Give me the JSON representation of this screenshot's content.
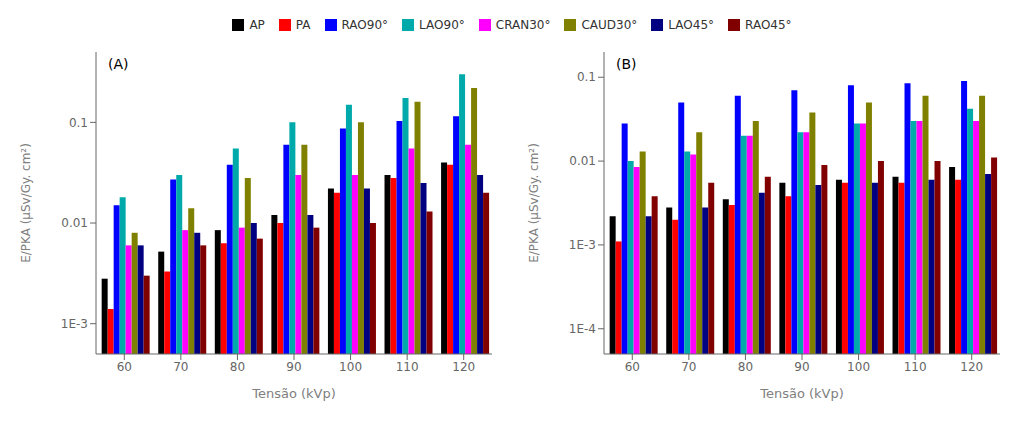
{
  "chart_data": [
    {
      "type": "bar",
      "title": "(A)",
      "xlabel": "Tensão (kVp)",
      "ylabel": "E/PKA (μSv/Gy. cm²)",
      "categories": [
        60,
        70,
        80,
        90,
        100,
        110,
        120
      ],
      "series": [
        {
          "name": "AP",
          "color": "#000000",
          "values": [
            0.0028,
            0.0052,
            0.0085,
            0.012,
            0.022,
            0.03,
            0.04
          ]
        },
        {
          "name": "PA",
          "color": "#ff0000",
          "values": [
            0.0014,
            0.0033,
            0.0063,
            0.01,
            0.02,
            0.028,
            0.038
          ]
        },
        {
          "name": "RAO90°",
          "color": "#0000ff",
          "values": [
            0.015,
            0.027,
            0.038,
            0.06,
            0.087,
            0.103,
            0.115
          ]
        },
        {
          "name": "LAO90°",
          "color": "#00aaaa",
          "values": [
            0.018,
            0.03,
            0.055,
            0.1,
            0.15,
            0.175,
            0.3
          ]
        },
        {
          "name": "CRAN30°",
          "color": "#ff00ff",
          "values": [
            0.006,
            0.0085,
            0.009,
            0.03,
            0.03,
            0.055,
            0.06
          ]
        },
        {
          "name": "CAUD30°",
          "color": "#808000",
          "values": [
            0.008,
            0.014,
            0.028,
            0.06,
            0.1,
            0.16,
            0.22
          ]
        },
        {
          "name": "LAO45°",
          "color": "#000080",
          "values": [
            0.006,
            0.008,
            0.01,
            0.012,
            0.022,
            0.025,
            0.03
          ]
        },
        {
          "name": "RAO45°",
          "color": "#800000",
          "values": [
            0.003,
            0.006,
            0.007,
            0.009,
            0.01,
            0.013,
            0.02
          ]
        }
      ],
      "log": "y",
      "ylim": [
        0.0005,
        0.5
      ],
      "yticks": [
        {
          "value": 0.001,
          "label": "1E-3"
        },
        0.01,
        0.1
      ],
      "grid": false,
      "legend": "top"
    },
    {
      "type": "bar",
      "title": "(B)",
      "xlabel": "Tensão (kVp)",
      "ylabel": "E/PKA (μSv/Gy. cm²)",
      "categories": [
        60,
        70,
        80,
        90,
        100,
        110,
        120
      ],
      "series": [
        {
          "name": "AP",
          "color": "#000000",
          "values": [
            0.0022,
            0.0028,
            0.0035,
            0.0055,
            0.006,
            0.0065,
            0.0085
          ]
        },
        {
          "name": "PA",
          "color": "#ff0000",
          "values": [
            0.0011,
            0.002,
            0.003,
            0.0038,
            0.0055,
            0.0055,
            0.006
          ]
        },
        {
          "name": "RAO90°",
          "color": "#0000ff",
          "values": [
            0.028,
            0.05,
            0.06,
            0.07,
            0.08,
            0.085,
            0.09
          ]
        },
        {
          "name": "LAO90°",
          "color": "#00aaaa",
          "values": [
            0.01,
            0.013,
            0.02,
            0.022,
            0.028,
            0.03,
            0.042
          ]
        },
        {
          "name": "CRAN30°",
          "color": "#ff00ff",
          "values": [
            0.0085,
            0.012,
            0.02,
            0.022,
            0.028,
            0.03,
            0.03
          ]
        },
        {
          "name": "CAUD30°",
          "color": "#808000",
          "values": [
            0.013,
            0.022,
            0.03,
            0.038,
            0.05,
            0.06,
            0.06
          ]
        },
        {
          "name": "LAO45°",
          "color": "#000080",
          "values": [
            0.0022,
            0.0028,
            0.0042,
            0.0052,
            0.0055,
            0.006,
            0.007
          ]
        },
        {
          "name": "RAO45°",
          "color": "#800000",
          "values": [
            0.0038,
            0.0055,
            0.0065,
            0.009,
            0.01,
            0.01,
            0.011
          ]
        }
      ],
      "log": "y",
      "ylim": [
        5e-05,
        0.2
      ],
      "yticks": [
        {
          "value": 0.0001,
          "label": "1E-4"
        },
        {
          "value": 0.001,
          "label": "1E-3"
        },
        0.01,
        0.1
      ],
      "grid": false
    }
  ]
}
